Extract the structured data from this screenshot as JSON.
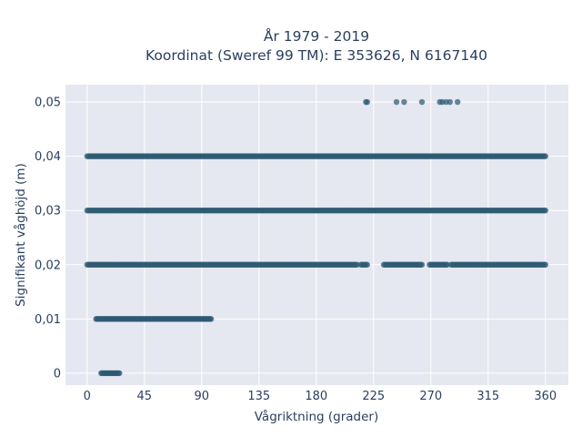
{
  "chart_data": {
    "type": "scatter",
    "title_line1": "År 1979 - 2019",
    "title_line2": "Koordinat (Sweref 99 TM): E 353626, N 6167140",
    "xlabel": "Vågriktning (grader)",
    "ylabel": "Signifikant våghöjd (m)",
    "xlim": [
      -17,
      378
    ],
    "ylim": [
      -0.0022,
      0.0532
    ],
    "xticks": [
      0,
      45,
      90,
      135,
      180,
      225,
      270,
      315,
      360
    ],
    "xtick_labels": [
      "0",
      "45",
      "90",
      "135",
      "180",
      "225",
      "270",
      "315",
      "360"
    ],
    "yticks": [
      0,
      0.01,
      0.02,
      0.03,
      0.04,
      0.05
    ],
    "ytick_labels": [
      "0",
      "0,01",
      "0,02",
      "0,03",
      "0,04",
      "0,05"
    ],
    "grid": true,
    "marker_color": "#2e5a73",
    "plot_background": "#e5e8f0",
    "series": [
      {
        "y": 0.05,
        "x": [
          219,
          220,
          243,
          249,
          263,
          277,
          279,
          282,
          285,
          291
        ]
      },
      {
        "y": 0.04,
        "x_range": [
          0,
          360
        ],
        "note_density": "dense"
      },
      {
        "y": 0.03,
        "x_range": [
          0,
          360
        ],
        "note_density": "dense"
      },
      {
        "y": 0.02,
        "x_range": [
          0,
          360
        ],
        "gaps": [
          [
            212,
            215
          ],
          [
            220,
            233
          ],
          [
            263,
            269
          ],
          [
            283,
            286
          ]
        ]
      },
      {
        "y": 0.01,
        "x_range": [
          7,
          98
        ]
      },
      {
        "y": 0,
        "x_range": [
          11,
          26
        ]
      }
    ]
  }
}
